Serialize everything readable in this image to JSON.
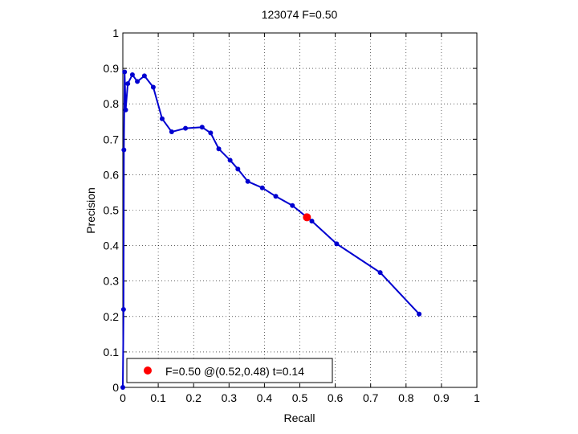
{
  "chart_data": {
    "type": "line",
    "title": "123074 F=0.50",
    "xlabel": "Recall",
    "ylabel": "Precision",
    "xlim": [
      0,
      1
    ],
    "ylim": [
      0,
      1
    ],
    "xticks": [
      0,
      0.1,
      0.2,
      0.3,
      0.4,
      0.5,
      0.6,
      0.7,
      0.8,
      0.9,
      1
    ],
    "yticks": [
      0,
      0.1,
      0.2,
      0.3,
      0.4,
      0.5,
      0.6,
      0.7,
      0.8,
      0.9,
      1
    ],
    "xtick_labels": [
      "0",
      "0.1",
      "0.2",
      "0.3",
      "0.4",
      "0.5",
      "0.6",
      "0.7",
      "0.8",
      "0.9",
      "1"
    ],
    "ytick_labels": [
      "0",
      "0.1",
      "0.2",
      "0.3",
      "0.4",
      "0.5",
      "0.6",
      "0.7",
      "0.8",
      "0.9",
      "1"
    ],
    "grid": true,
    "legend_position": "bottom-left",
    "line_color": "#0000d0",
    "series": [
      {
        "x": [
          0.0,
          0.002,
          0.003,
          0.005,
          0.008,
          0.014,
          0.027,
          0.041,
          0.061,
          0.086,
          0.111,
          0.138,
          0.177,
          0.224,
          0.248,
          0.271,
          0.303,
          0.325,
          0.353,
          0.394,
          0.432,
          0.479,
          0.534,
          0.604,
          0.727,
          0.837
        ],
        "y": [
          0.0,
          0.22,
          0.67,
          0.89,
          0.783,
          0.857,
          0.882,
          0.863,
          0.879,
          0.847,
          0.758,
          0.721,
          0.731,
          0.734,
          0.718,
          0.673,
          0.641,
          0.616,
          0.581,
          0.563,
          0.539,
          0.513,
          0.469,
          0.405,
          0.324,
          0.207
        ]
      }
    ],
    "highlight": {
      "x": 0.52,
      "y": 0.48,
      "color": "#ff0000",
      "label": "F=0.50 @(0.52,0.48) t=0.14"
    }
  }
}
